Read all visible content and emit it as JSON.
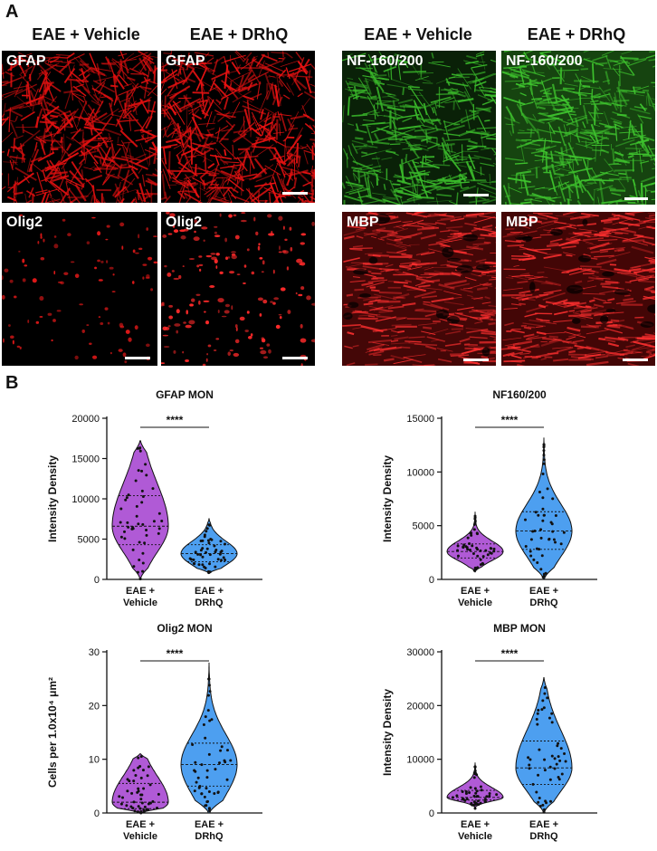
{
  "panel_a": {
    "letter": "A",
    "column_titles": [
      "EAE + Vehicle",
      "EAE + DRhQ",
      "EAE + Vehicle",
      "EAE + DRhQ"
    ],
    "images": [
      {
        "label": "GFAP",
        "color": "#e01010",
        "style": "fibers"
      },
      {
        "label": "GFAP",
        "color": "#e81212",
        "style": "fibers"
      },
      {
        "label": "Olig2",
        "color": "#e01818",
        "style": "dots-sparse"
      },
      {
        "label": "Olig2",
        "color": "#ff2a2a",
        "style": "dots-dense"
      },
      {
        "label": "NF-160/200",
        "color": "#3ab82a",
        "style": "fibers-green"
      },
      {
        "label": "NF-160/200",
        "color": "#3ec42e",
        "style": "fibers-green-dense"
      },
      {
        "label": "MBP",
        "color": "#c41414",
        "style": "mbp"
      },
      {
        "label": "MBP",
        "color": "#c01212",
        "style": "mbp"
      }
    ]
  },
  "panel_b": {
    "letter": "B",
    "chart_data": [
      {
        "type": "violin",
        "title": "GFAP MON",
        "ylabel": "Intensity Density",
        "categories": [
          "EAE +\nVehicle",
          "EAE +\nDRhQ"
        ],
        "ylim": [
          0,
          20000
        ],
        "yticks": [
          0,
          5000,
          10000,
          15000,
          20000
        ],
        "significance": "****",
        "series": [
          {
            "color": "#b05ad6",
            "median": 6600,
            "q1": 4300,
            "q3": 10400,
            "min": 0,
            "max": 17200
          },
          {
            "color": "#4d9ff0",
            "median": 3200,
            "q1": 2200,
            "q3": 4300,
            "min": 800,
            "max": 7600
          }
        ]
      },
      {
        "type": "violin",
        "title": "NF160/200",
        "ylabel": "Intensity Density",
        "categories": [
          "EAE +\nVehicle",
          "EAE +\nDRhQ"
        ],
        "ylim": [
          0,
          15000
        ],
        "yticks": [
          0,
          5000,
          10000,
          15000
        ],
        "significance": "****",
        "series": [
          {
            "color": "#b05ad6",
            "median": 2600,
            "q1": 2000,
            "q3": 3300,
            "min": 700,
            "max": 6300
          },
          {
            "color": "#4d9ff0",
            "median": 4500,
            "q1": 2800,
            "q3": 6300,
            "min": 0,
            "max": 13200
          }
        ]
      },
      {
        "type": "violin",
        "title": "Olig2 MON",
        "ylabel": "Cells per 1.0x10⁴ μm²",
        "categories": [
          "EAE +\nVehicle",
          "EAE +\nDRhQ"
        ],
        "ylim": [
          0,
          30
        ],
        "yticks": [
          0,
          10,
          20,
          30
        ],
        "significance": "****",
        "series": [
          {
            "color": "#b05ad6",
            "median": 2.0,
            "q1": 0.8,
            "q3": 5.5,
            "min": 0,
            "max": 11
          },
          {
            "color": "#4d9ff0",
            "median": 9.0,
            "q1": 5.0,
            "q3": 13.0,
            "min": 0,
            "max": 28
          }
        ]
      },
      {
        "type": "violin",
        "title": "MBP MON",
        "ylabel": "Intensity Density",
        "categories": [
          "EAE +\nVehicle",
          "EAE +\nDRhQ"
        ],
        "ylim": [
          0,
          30000
        ],
        "yticks": [
          0,
          10000,
          20000,
          30000
        ],
        "significance": "****",
        "series": [
          {
            "color": "#b05ad6",
            "median": 2900,
            "q1": 2400,
            "q3": 4200,
            "min": 800,
            "max": 9400
          },
          {
            "color": "#4d9ff0",
            "median": 8400,
            "q1": 5300,
            "q3": 13400,
            "min": 0,
            "max": 25200
          }
        ]
      }
    ]
  }
}
